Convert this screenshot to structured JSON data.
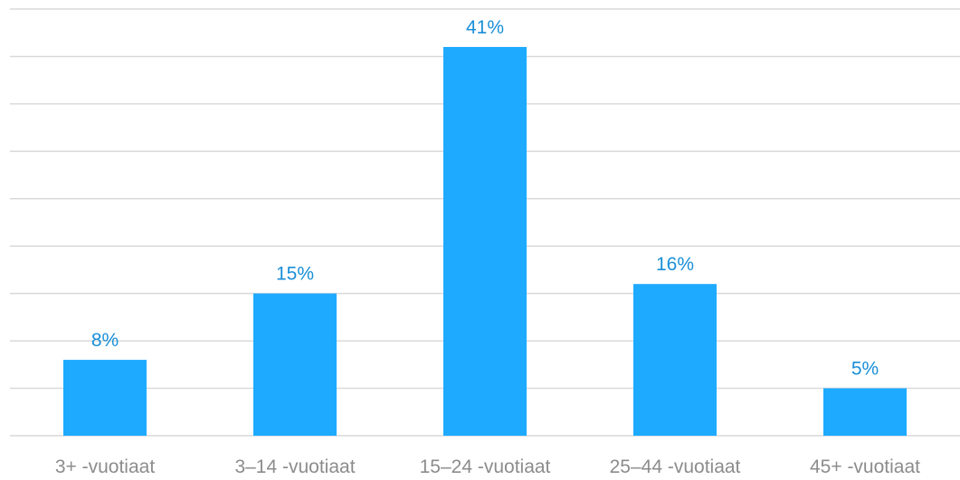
{
  "chart_data": {
    "type": "bar",
    "categories": [
      "3+ -vuotiaat",
      "3–14 -vuotiaat",
      "15–24 -vuotiaat",
      "25–44 -vuotiaat",
      "45+ -vuotiaat"
    ],
    "values": [
      8,
      15,
      41,
      16,
      5
    ],
    "data_labels": [
      "8%",
      "15%",
      "41%",
      "16%",
      "5%"
    ],
    "title": "",
    "xlabel": "",
    "ylabel": "",
    "ylim": [
      0,
      45
    ],
    "y_gridlines": [
      0,
      5,
      10,
      15,
      20,
      25,
      30,
      35,
      40,
      45
    ],
    "grid": true,
    "y_axis_labels_shown": false,
    "legend": "none",
    "colors": {
      "bar": "#1eaaff",
      "data_label": "#1a8fd8",
      "tick_label": "#8c8c8c",
      "gridline": "#d9d9d9"
    }
  }
}
